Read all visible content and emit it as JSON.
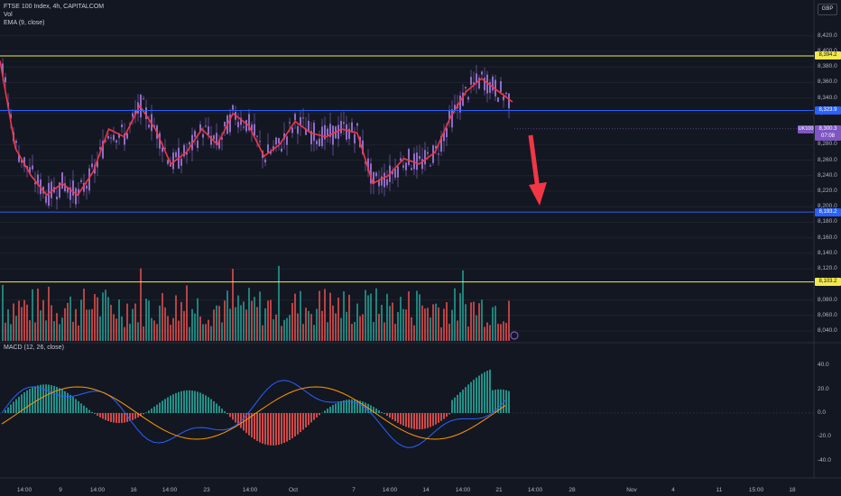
{
  "header": {
    "title": "FTSE 100 Index, 4h, CAPITALCOM",
    "vol": "Vol",
    "ema": "EMA (9, close)",
    "currency": "GBP"
  },
  "price_axis": {
    "ticks": [
      "8,420.0",
      "8,400.0",
      "8,380.0",
      "8,360.0",
      "8,340.0",
      "8,320.0",
      "8,280.0",
      "8,260.0",
      "8,240.0",
      "8,220.0",
      "8,200.0",
      "8,180.0",
      "8,160.0",
      "8,140.0",
      "8,120.0",
      "8,080.0",
      "8,060.0",
      "8,040.0"
    ],
    "tick_values": [
      8420,
      8400,
      8380,
      8360,
      8340,
      8320,
      8280,
      8260,
      8240,
      8220,
      8200,
      8180,
      8160,
      8140,
      8120,
      8080,
      8060,
      8040
    ]
  },
  "levels": [
    {
      "label": "8,394.2",
      "value": 8394.2,
      "color": "#f2e94e",
      "kind": "yellow"
    },
    {
      "label": "8,323.9",
      "value": 8323.9,
      "color": "#2962ff",
      "kind": "blue"
    },
    {
      "label": "8,193.2",
      "value": 8193.2,
      "color": "#2962ff",
      "kind": "blue"
    },
    {
      "label": "8,103.2",
      "value": 8103.2,
      "color": "#f2e94e",
      "kind": "yellow"
    }
  ],
  "current": {
    "symbol": "UK100",
    "price": "8,300.3",
    "countdown": "07:08",
    "value": 8300.3
  },
  "macd": {
    "label": "MACD (12, 26, close)",
    "ticks": [
      "40.0",
      "20.0",
      "0.0",
      "-20.0",
      "-40.0"
    ],
    "tick_values": [
      40,
      20,
      0,
      -20,
      -40
    ]
  },
  "time_axis": [
    "14:00",
    "9",
    "14:00",
    "16",
    "14:00",
    "23",
    "14:00",
    "Oct",
    "7",
    "14:00",
    "14",
    "14:00",
    "21",
    "14:00",
    "28",
    "Nov",
    "4",
    "11",
    "15:00",
    "18"
  ],
  "colors": {
    "bg": "#131722",
    "up": "#26a69a",
    "down": "#ef5350",
    "candle": "#8f6cc8",
    "ema": "#f23645",
    "arrow": "#f23645",
    "macd": "#2962ff",
    "signal": "#ff9800"
  },
  "chart_data": {
    "type": "candlestick",
    "title": "FTSE 100 Index, 4h, CAPITALCOM",
    "price_range": [
      8140,
      8430
    ],
    "ema_path": [
      8388,
      8275,
      8240,
      8215,
      8230,
      8215,
      8245,
      8300,
      8290,
      8330,
      8300,
      8255,
      8270,
      8300,
      8280,
      8320,
      8305,
      8265,
      8280,
      8310,
      8295,
      8290,
      8300,
      8295,
      8230,
      8240,
      8262,
      8255,
      8270,
      8315,
      8348,
      8365,
      8350,
      8335
    ]
  }
}
